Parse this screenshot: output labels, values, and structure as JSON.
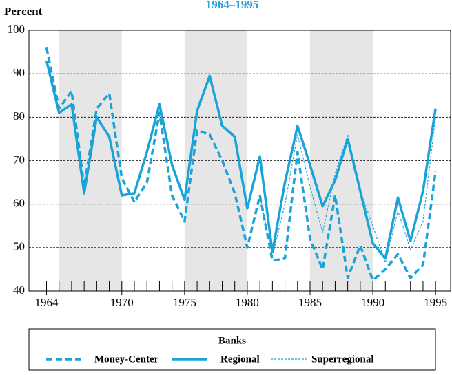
{
  "chart_data": {
    "type": "line",
    "title": "1964–1995",
    "y_label": "Percent",
    "legend_title": "Banks",
    "x": [
      1964,
      1965,
      1966,
      1967,
      1968,
      1969,
      1970,
      1971,
      1972,
      1973,
      1974,
      1975,
      1976,
      1977,
      1978,
      1979,
      1980,
      1981,
      1982,
      1983,
      1984,
      1985,
      1986,
      1987,
      1988,
      1989,
      1990,
      1991,
      1992,
      1993,
      1994,
      1995
    ],
    "series": [
      {
        "name": "Money-Center",
        "color": "#1aa3d9",
        "style": "dashed",
        "values": [
          96,
          82,
          86,
          64,
          82,
          85.5,
          66,
          60.5,
          65,
          81,
          62,
          56,
          77,
          76,
          70,
          62.5,
          50,
          62,
          47,
          47.5,
          72,
          52,
          45,
          62,
          43,
          50.5,
          42.5,
          45,
          48.5,
          43,
          46,
          67.5
        ]
      },
      {
        "name": "Regional",
        "color": "#1aa3d9",
        "style": "solid",
        "values": [
          93,
          81,
          83,
          62.5,
          80,
          75.5,
          62,
          62.5,
          72,
          83,
          69,
          61,
          81.5,
          89.5,
          78,
          75.5,
          59,
          71,
          49,
          65,
          78,
          69,
          59.5,
          65.5,
          75,
          63,
          51,
          47.5,
          61.5,
          51.5,
          63,
          82
        ]
      },
      {
        "name": "Superregional",
        "color": "#1aa3d9",
        "style": "thin-dashed",
        "values": [
          null,
          null,
          null,
          null,
          null,
          null,
          null,
          null,
          null,
          null,
          null,
          null,
          null,
          null,
          null,
          null,
          null,
          62,
          48,
          60,
          76,
          64,
          53.5,
          67,
          76,
          63,
          55,
          46.5,
          58.5,
          49.5,
          56,
          80
        ]
      }
    ],
    "shaded_ranges": [
      [
        1965,
        1970
      ],
      [
        1975,
        1980
      ],
      [
        1985,
        1990
      ]
    ],
    "xlim": [
      1962.6,
      1996.2
    ],
    "xticks": [
      1964,
      1970,
      1975,
      1980,
      1985,
      1990,
      1995
    ],
    "ylim": [
      40,
      100
    ],
    "yticks": [
      40,
      50,
      60,
      70,
      80,
      90,
      100
    ],
    "grid": true
  }
}
